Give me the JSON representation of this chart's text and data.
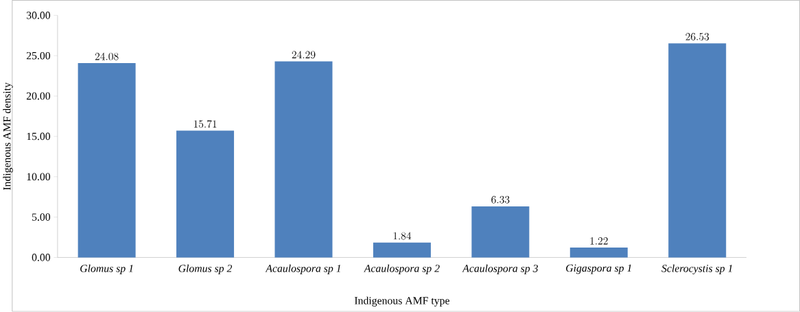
{
  "chart_data": {
    "type": "bar",
    "xlabel": "Indigenous AMF type",
    "ylabel": "Indigenous AMF  density",
    "categories": [
      "Glomus  sp 1",
      "Glomus sp 2",
      "Acaulospora sp 1",
      "Acaulospora sp 2",
      "Acaulospora sp 3",
      "Gigaspora sp 1",
      "Sclerocystis sp 1"
    ],
    "values": [
      24.08,
      15.71,
      24.29,
      1.84,
      6.33,
      1.22,
      26.53
    ],
    "color": "#4f81bd",
    "data_labels": true,
    "ylim": [
      0,
      30
    ],
    "yticks": [
      {
        "value": 0,
        "label": "0.00"
      },
      {
        "value": 5,
        "label": "5.00"
      },
      {
        "value": 10,
        "label": "10.00"
      },
      {
        "value": 15,
        "label": "15.00"
      },
      {
        "value": 20,
        "label": "20.00"
      },
      {
        "value": 25,
        "label": "25.00"
      },
      {
        "value": 30,
        "label": "30.00"
      }
    ]
  }
}
